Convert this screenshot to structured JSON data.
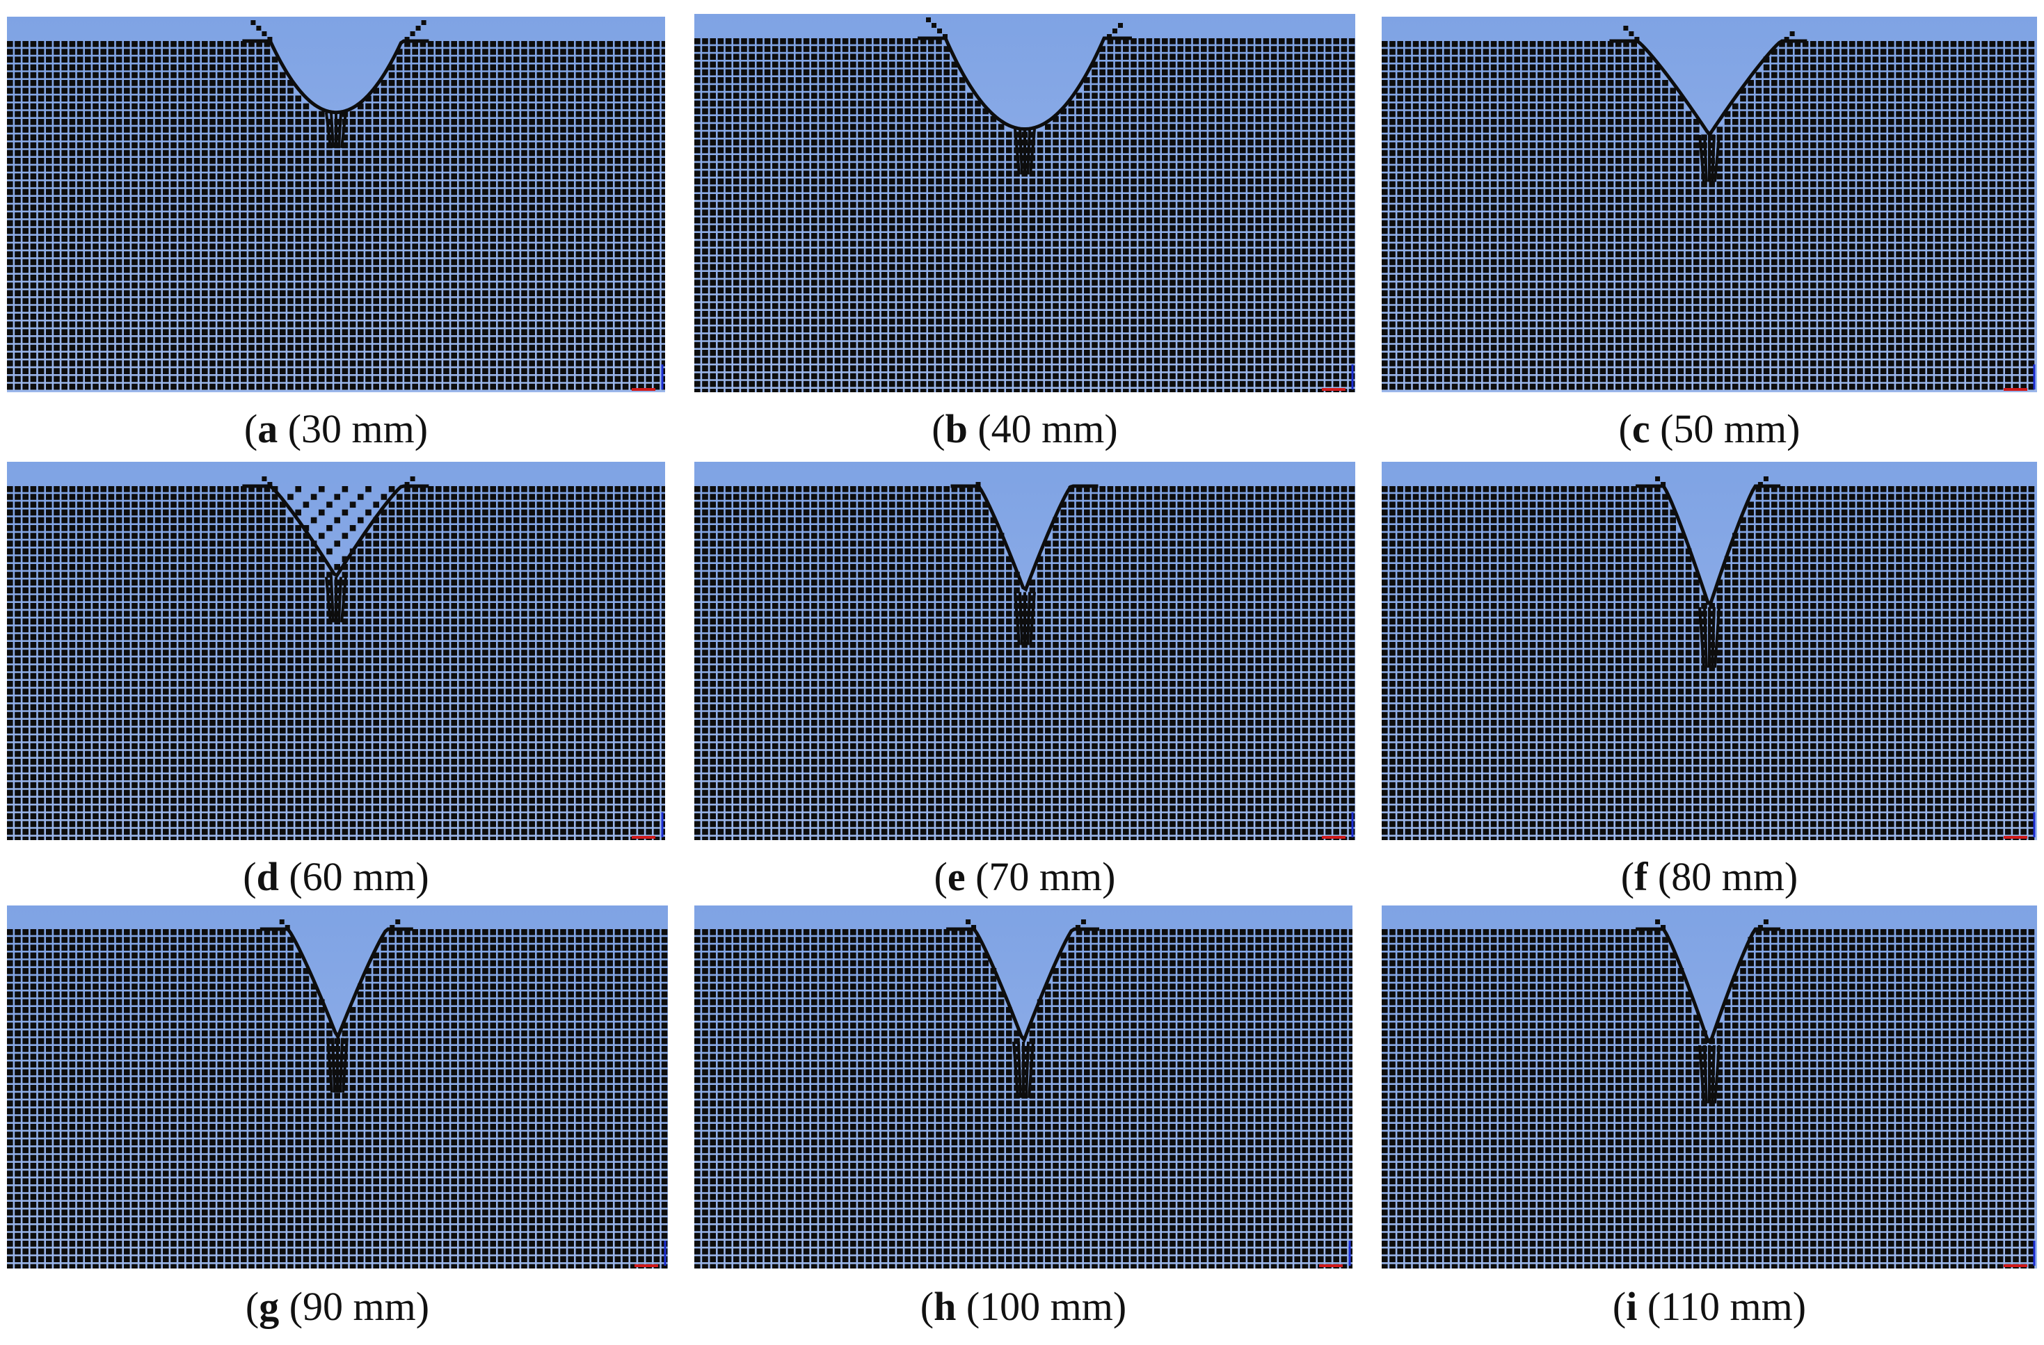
{
  "colors": {
    "sky": "#9bb6ea",
    "sky_dark": "#7fa3e4",
    "mesh_gap": "#c8d4f0",
    "particle": "#0d0d0d",
    "axis_red": "#d11a1a",
    "axis_blue": "#1c2fd6"
  },
  "panels": [
    {
      "letter": "a",
      "label": " (30 mm)",
      "crater": {
        "width": 0.2,
        "depth": 0.19,
        "profile": "bowl",
        "ejecta": 0.55
      }
    },
    {
      "letter": "b",
      "label": " (40 mm)",
      "crater": {
        "width": 0.24,
        "depth": 0.24,
        "profile": "bowl",
        "ejecta": 0.5
      }
    },
    {
      "letter": "c",
      "label": " (50 mm)",
      "crater": {
        "width": 0.22,
        "depth": 0.25,
        "profile": "v",
        "ejecta": 0.35
      }
    },
    {
      "letter": "d",
      "label": " (60 mm)",
      "crater": {
        "width": 0.2,
        "depth": 0.24,
        "profile": "scatter",
        "ejecta": 0.3
      }
    },
    {
      "letter": "e",
      "label": " (70 mm)",
      "crater": {
        "width": 0.14,
        "depth": 0.28,
        "profile": "v",
        "ejecta": 0.1
      }
    },
    {
      "letter": "f",
      "label": " (80 mm)",
      "crater": {
        "width": 0.14,
        "depth": 0.32,
        "profile": "v",
        "ejecta": 0.25
      }
    },
    {
      "letter": "g",
      "label": " (90 mm)",
      "crater": {
        "width": 0.15,
        "depth": 0.3,
        "profile": "v",
        "ejecta": 0.3
      }
    },
    {
      "letter": "h",
      "label": " (100 mm)",
      "crater": {
        "width": 0.15,
        "depth": 0.31,
        "profile": "v",
        "ejecta": 0.3
      }
    },
    {
      "letter": "i",
      "label": " (110 mm)",
      "crater": {
        "width": 0.14,
        "depth": 0.32,
        "profile": "v",
        "ejecta": 0.3
      }
    }
  ]
}
